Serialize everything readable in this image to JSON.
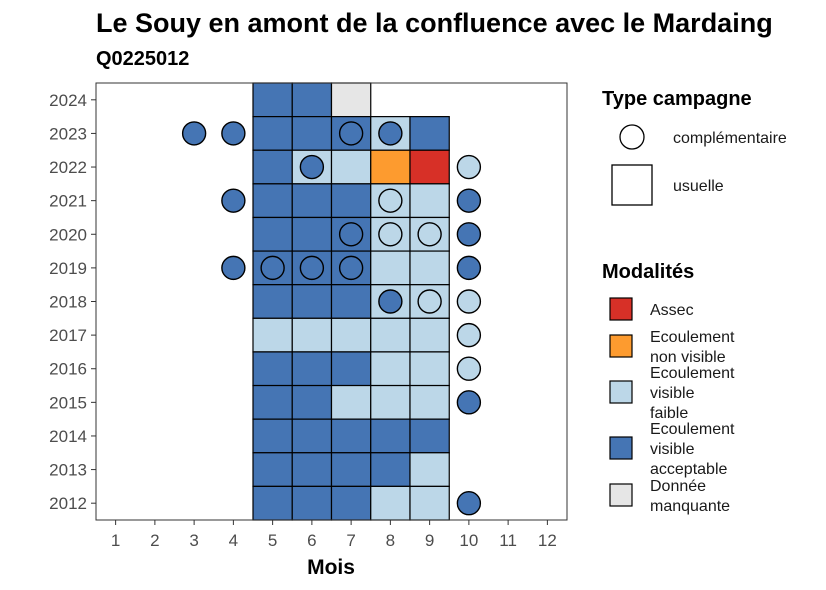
{
  "chart_data": {
    "type": "heatmap",
    "title": "Le Souy en amont de la confluence avec le Mardaing",
    "subtitle": "Q0225012",
    "xlabel": "Mois",
    "ylabel": "",
    "x_ticks": [
      "1",
      "2",
      "3",
      "4",
      "5",
      "6",
      "7",
      "8",
      "9",
      "10",
      "11",
      "12"
    ],
    "y_ticks": [
      "2012",
      "2013",
      "2014",
      "2015",
      "2016",
      "2017",
      "2018",
      "2019",
      "2020",
      "2021",
      "2022",
      "2023",
      "2024"
    ],
    "xlim": [
      0.5,
      12.5
    ],
    "ylim": [
      2011.5,
      2024.5
    ],
    "legend": {
      "campagne_title": "Type campagne",
      "campagne": [
        {
          "key": "complementaire",
          "label": "complémentaire",
          "shape": "circle"
        },
        {
          "key": "usuelle",
          "label": "usuelle",
          "shape": "square"
        }
      ],
      "modalites_title": "Modalités",
      "modalites": [
        {
          "key": "assec",
          "lines": [
            "Assec"
          ],
          "color": "#d73027"
        },
        {
          "key": "non_visible",
          "lines": [
            "Ecoulement",
            "non visible"
          ],
          "color": "#fd9b2f"
        },
        {
          "key": "faible",
          "lines": [
            "Ecoulement",
            "visible",
            "faible"
          ],
          "color": "#bcd7e8"
        },
        {
          "key": "acceptable",
          "lines": [
            "Ecoulement",
            "visible",
            "acceptable"
          ],
          "color": "#4575b4"
        },
        {
          "key": "manquante",
          "lines": [
            "Donnée",
            "manquante"
          ],
          "color": "#e6e6e6"
        }
      ]
    },
    "usuelle": [
      {
        "year": 2024,
        "values": {
          "5": "acceptable",
          "6": "acceptable",
          "7": "manquante"
        }
      },
      {
        "year": 2023,
        "values": {
          "5": "acceptable",
          "6": "acceptable",
          "7": "acceptable",
          "8": "faible",
          "9": "acceptable"
        }
      },
      {
        "year": 2022,
        "values": {
          "5": "acceptable",
          "6": "faible",
          "7": "faible",
          "8": "non_visible",
          "9": "assec"
        }
      },
      {
        "year": 2021,
        "values": {
          "5": "acceptable",
          "6": "acceptable",
          "7": "acceptable",
          "8": "faible",
          "9": "faible"
        }
      },
      {
        "year": 2020,
        "values": {
          "5": "acceptable",
          "6": "acceptable",
          "7": "acceptable",
          "8": "faible",
          "9": "faible"
        }
      },
      {
        "year": 2019,
        "values": {
          "5": "acceptable",
          "6": "acceptable",
          "7": "acceptable",
          "8": "faible",
          "9": "faible"
        }
      },
      {
        "year": 2018,
        "values": {
          "5": "acceptable",
          "6": "acceptable",
          "7": "acceptable",
          "8": "faible",
          "9": "faible"
        }
      },
      {
        "year": 2017,
        "values": {
          "5": "faible",
          "6": "faible",
          "7": "faible",
          "8": "faible",
          "9": "faible"
        }
      },
      {
        "year": 2016,
        "values": {
          "5": "acceptable",
          "6": "acceptable",
          "7": "acceptable",
          "8": "faible",
          "9": "faible"
        }
      },
      {
        "year": 2015,
        "values": {
          "5": "acceptable",
          "6": "acceptable",
          "7": "faible",
          "8": "faible",
          "9": "faible"
        }
      },
      {
        "year": 2014,
        "values": {
          "5": "acceptable",
          "6": "acceptable",
          "7": "acceptable",
          "8": "acceptable",
          "9": "acceptable"
        }
      },
      {
        "year": 2013,
        "values": {
          "5": "acceptable",
          "6": "acceptable",
          "7": "acceptable",
          "8": "acceptable",
          "9": "faible"
        }
      },
      {
        "year": 2012,
        "values": {
          "5": "acceptable",
          "6": "acceptable",
          "7": "acceptable",
          "8": "faible",
          "9": "faible"
        }
      }
    ],
    "complementaire": [
      {
        "month": 3,
        "year": 2023,
        "value": "acceptable"
      },
      {
        "month": 4,
        "year": 2023,
        "value": "acceptable"
      },
      {
        "month": 7,
        "year": 2023,
        "value": "acceptable"
      },
      {
        "month": 8,
        "year": 2023,
        "value": "acceptable"
      },
      {
        "month": 6,
        "year": 2022,
        "value": "acceptable"
      },
      {
        "month": 10,
        "year": 2022,
        "value": "faible"
      },
      {
        "month": 4,
        "year": 2021,
        "value": "acceptable"
      },
      {
        "month": 8,
        "year": 2021,
        "value": "faible"
      },
      {
        "month": 10,
        "year": 2021,
        "value": "acceptable"
      },
      {
        "month": 7,
        "year": 2020,
        "value": "acceptable"
      },
      {
        "month": 8,
        "year": 2020,
        "value": "faible"
      },
      {
        "month": 9,
        "year": 2020,
        "value": "faible"
      },
      {
        "month": 10,
        "year": 2020,
        "value": "acceptable"
      },
      {
        "month": 4,
        "year": 2019,
        "value": "acceptable"
      },
      {
        "month": 5,
        "year": 2019,
        "value": "acceptable"
      },
      {
        "month": 6,
        "year": 2019,
        "value": "acceptable"
      },
      {
        "month": 7,
        "year": 2019,
        "value": "acceptable"
      },
      {
        "month": 10,
        "year": 2019,
        "value": "acceptable"
      },
      {
        "month": 8,
        "year": 2018,
        "value": "acceptable"
      },
      {
        "month": 9,
        "year": 2018,
        "value": "faible"
      },
      {
        "month": 10,
        "year": 2018,
        "value": "faible"
      },
      {
        "month": 10,
        "year": 2017,
        "value": "faible"
      },
      {
        "month": 10,
        "year": 2016,
        "value": "faible"
      },
      {
        "month": 10,
        "year": 2015,
        "value": "acceptable"
      },
      {
        "month": 10,
        "year": 2012,
        "value": "acceptable"
      }
    ]
  }
}
